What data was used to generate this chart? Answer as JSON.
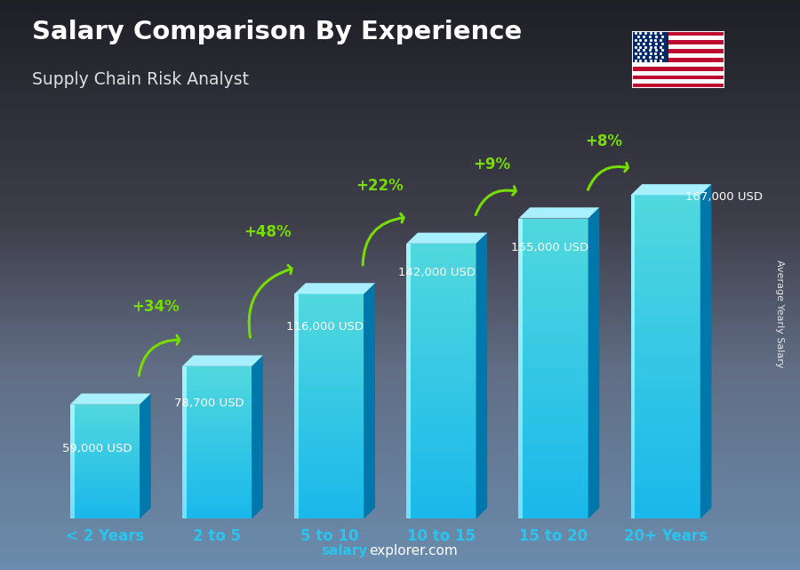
{
  "title1": "Salary Comparison By Experience",
  "title2": "Supply Chain Risk Analyst",
  "categories": [
    "< 2 Years",
    "2 to 5",
    "5 to 10",
    "10 to 15",
    "15 to 20",
    "20+ Years"
  ],
  "values": [
    59000,
    78700,
    116000,
    142000,
    155000,
    167000
  ],
  "value_labels": [
    "59,000 USD",
    "78,700 USD",
    "116,000 USD",
    "142,000 USD",
    "155,000 USD",
    "167,000 USD"
  ],
  "pct_changes": [
    "+34%",
    "+48%",
    "+22%",
    "+9%",
    "+8%"
  ],
  "ylabel": "Average Yearly Salary",
  "arrow_color": "#77dd00",
  "pct_color": "#77dd00",
  "title1_color": "#ffffff",
  "title2_color": "#dddddd",
  "xlabel_color": "#29c4f0",
  "value_color": "#ffffff",
  "footer_bold": "salary",
  "footer_rest": "explorer.com",
  "ylim": [
    0,
    200000
  ],
  "bar_width": 0.62,
  "bg_top": "#4a7a9b",
  "bg_bottom": "#1a2a3a",
  "bar_face": "#29c4f0",
  "bar_top": "#80e8ff",
  "bar_side": "#0088bb",
  "bar_highlight": "#60d8f8"
}
